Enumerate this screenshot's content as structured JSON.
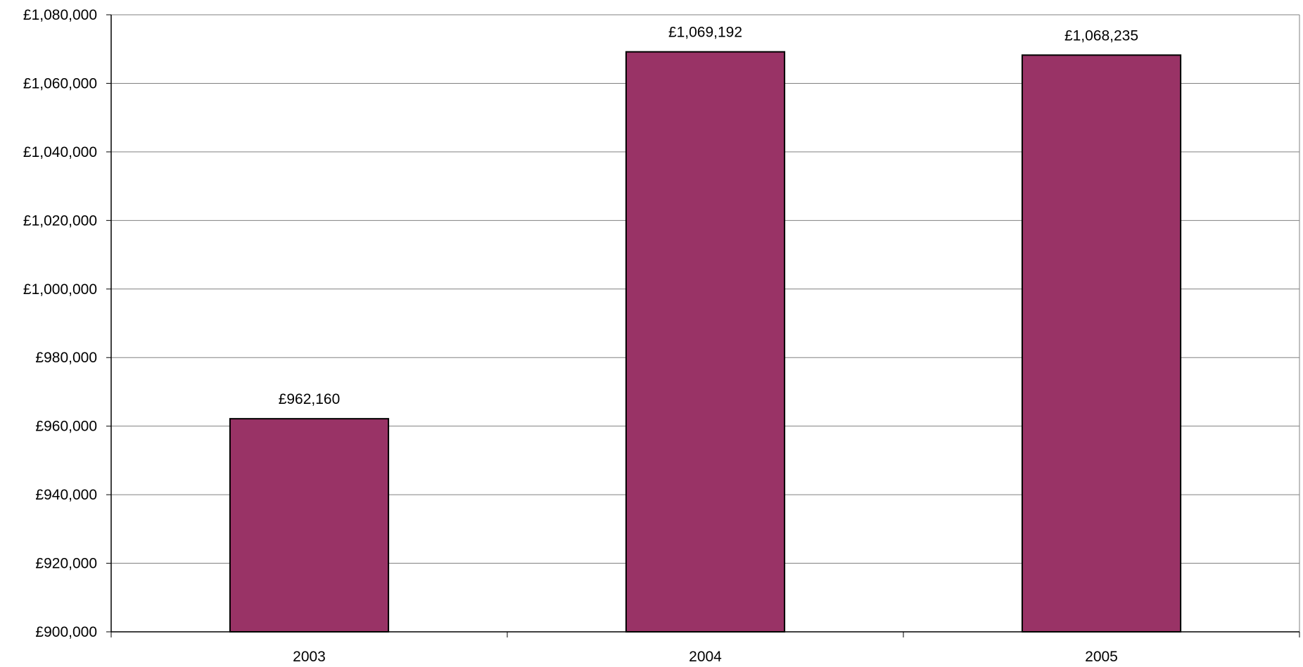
{
  "chart_data": {
    "type": "bar",
    "title": "",
    "xlabel": "",
    "ylabel": "",
    "categories": [
      "2003",
      "2004",
      "2005"
    ],
    "values": [
      962160,
      1069192,
      1068235
    ],
    "data_labels": [
      "£962,160",
      "£1,069,192",
      "£1,068,235"
    ],
    "ylim": [
      900000,
      1080000
    ],
    "y_ticks": [
      900000,
      920000,
      940000,
      960000,
      980000,
      1000000,
      1020000,
      1040000,
      1060000,
      1080000
    ],
    "y_tick_labels": [
      "£900,000",
      "£920,000",
      "£940,000",
      "£960,000",
      "£980,000",
      "£1,000,000",
      "£1,020,000",
      "£1,040,000",
      "£1,060,000",
      "£1,080,000"
    ],
    "grid": true,
    "legend": "none",
    "bar_color": "#993366",
    "bar_edge_color": "#000000",
    "grid_color": "#808080"
  }
}
